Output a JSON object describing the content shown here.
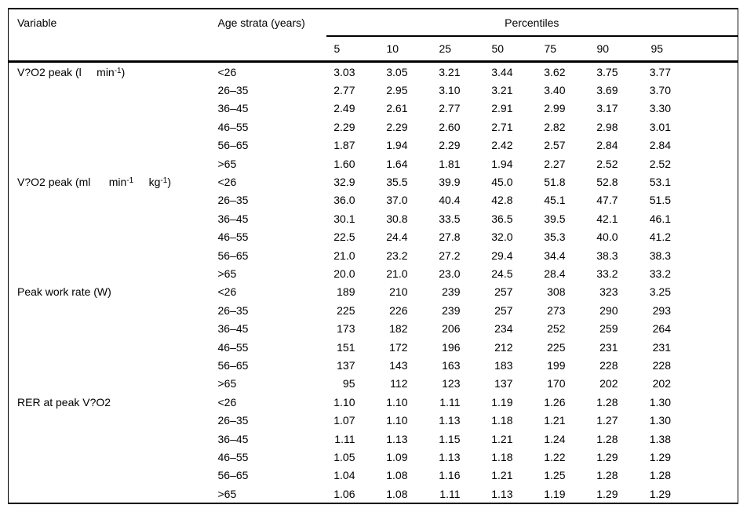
{
  "page": {
    "background_color": "#ffffff",
    "text_color": "#000000",
    "rule_color": "#000000"
  },
  "table": {
    "header": {
      "variable": "Variable",
      "age_strata": "Age strata (years)",
      "percentiles_label": "Percentiles",
      "percentile_levels": [
        "5",
        "10",
        "25",
        "50",
        "75",
        "90",
        "95"
      ]
    },
    "blocks": [
      {
        "variable_segments": [
          {
            "text": "V?O2 peak (l     min"
          },
          {
            "text": "-1",
            "sup": true
          },
          {
            "text": ")"
          }
        ],
        "rows": [
          {
            "age": "<26",
            "values": [
              "3.03",
              "3.05",
              "3.21",
              "3.44",
              "3.62",
              "3.75",
              "3.77"
            ]
          },
          {
            "age": "26–35",
            "values": [
              "2.77",
              "2.95",
              "3.10",
              "3.21",
              "3.40",
              "3.69",
              "3.70"
            ]
          },
          {
            "age": "36–45",
            "values": [
              "2.49",
              "2.61",
              "2.77",
              "2.91",
              "2.99",
              "3.17",
              "3.30"
            ]
          },
          {
            "age": "46–55",
            "values": [
              "2.29",
              "2.29",
              "2.60",
              "2.71",
              "2.82",
              "2.98",
              "3.01"
            ]
          },
          {
            "age": "56–65",
            "values": [
              "1.87",
              "1.94",
              "2.29",
              "2.42",
              "2.57",
              "2.84",
              "2.84"
            ]
          },
          {
            "age": ">65",
            "values": [
              "1.60",
              "1.64",
              "1.81",
              "1.94",
              "2.27",
              "2.52",
              "2.52"
            ]
          }
        ]
      },
      {
        "variable_segments": [
          {
            "text": "V?O2 peak (ml      min"
          },
          {
            "text": "-1",
            "sup": true
          },
          {
            "text": "     kg"
          },
          {
            "text": "-1",
            "sup": true
          },
          {
            "text": ")"
          }
        ],
        "rows": [
          {
            "age": "<26",
            "values": [
              "32.9",
              "35.5",
              "39.9",
              "45.0",
              "51.8",
              "52.8",
              "53.1"
            ]
          },
          {
            "age": "26–35",
            "values": [
              "36.0",
              "37.0",
              "40.4",
              "42.8",
              "45.1",
              "47.7",
              "51.5"
            ]
          },
          {
            "age": "36–45",
            "values": [
              "30.1",
              "30.8",
              "33.5",
              "36.5",
              "39.5",
              "42.1",
              "46.1"
            ]
          },
          {
            "age": "46–55",
            "values": [
              "22.5",
              "24.4",
              "27.8",
              "32.0",
              "35.3",
              "40.0",
              "41.2"
            ]
          },
          {
            "age": "56–65",
            "values": [
              "21.0",
              "23.2",
              "27.2",
              "29.4",
              "34.4",
              "38.3",
              "38.3"
            ]
          },
          {
            "age": ">65",
            "values": [
              "20.0",
              "21.0",
              "23.0",
              "24.5",
              "28.4",
              "33.2",
              "33.2"
            ]
          }
        ]
      },
      {
        "variable_segments": [
          {
            "text": "Peak work rate (W)"
          }
        ],
        "rows": [
          {
            "age": "<26",
            "values": [
              "189",
              "210",
              "239",
              "257",
              "308",
              "323",
              "3.25"
            ]
          },
          {
            "age": "26–35",
            "values": [
              "225",
              "226",
              "239",
              "257",
              "273",
              "290",
              "293"
            ]
          },
          {
            "age": "36–45",
            "values": [
              "173",
              "182",
              "206",
              "234",
              "252",
              "259",
              "264"
            ]
          },
          {
            "age": "46–55",
            "values": [
              "151",
              "172",
              "196",
              "212",
              "225",
              "231",
              "231"
            ]
          },
          {
            "age": "56–65",
            "values": [
              "137",
              "143",
              "163",
              "183",
              "199",
              "228",
              "228"
            ]
          },
          {
            "age": ">65",
            "values": [
              "95",
              "112",
              "123",
              "137",
              "170",
              "202",
              "202"
            ]
          }
        ]
      },
      {
        "variable_segments": [
          {
            "text": "RER at peak V?O2"
          }
        ],
        "rows": [
          {
            "age": "<26",
            "values": [
              "1.10",
              "1.10",
              "1.11",
              "1.19",
              "1.26",
              "1.28",
              "1.30"
            ]
          },
          {
            "age": "26–35",
            "values": [
              "1.07",
              "1.10",
              "1.13",
              "1.18",
              "1.21",
              "1.27",
              "1.30"
            ]
          },
          {
            "age": "36–45",
            "values": [
              "1.11",
              "1.13",
              "1.15",
              "1.21",
              "1.24",
              "1.28",
              "1.38"
            ]
          },
          {
            "age": "46–55",
            "values": [
              "1.05",
              "1.09",
              "1.13",
              "1.18",
              "1.22",
              "1.29",
              "1.29"
            ]
          },
          {
            "age": "56–65",
            "values": [
              "1.04",
              "1.08",
              "1.16",
              "1.21",
              "1.25",
              "1.28",
              "1.28"
            ]
          },
          {
            "age": ">65",
            "values": [
              "1.06",
              "1.08",
              "1.11",
              "1.13",
              "1.19",
              "1.29",
              "1.29"
            ]
          }
        ]
      }
    ]
  }
}
